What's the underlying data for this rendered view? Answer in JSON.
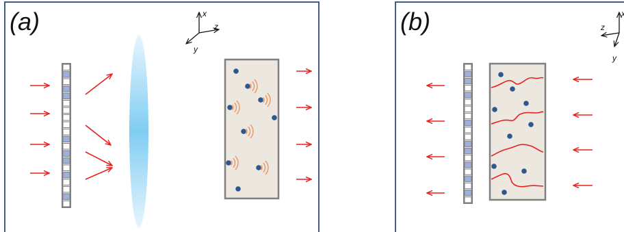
{
  "panels": [
    {
      "id": "a",
      "label": "(a)",
      "axes": {
        "x": "x",
        "y": "y",
        "z": "z"
      }
    },
    {
      "id": "b",
      "label": "(b)",
      "axes": {
        "x": "x",
        "y": "y",
        "z": "z"
      }
    }
  ],
  "colors": {
    "panel_border": "#3d5f86",
    "arrow": "#e8201d",
    "dot": "#2f568d",
    "slm_fill": "#9db1dc",
    "slm_border": "#7f7f7f",
    "sample_fill": "#ece8df",
    "sample_border": "#7f7f7f",
    "lens": "#7fcdf3",
    "wave": "#f1925f",
    "path": "#e8201d"
  }
}
